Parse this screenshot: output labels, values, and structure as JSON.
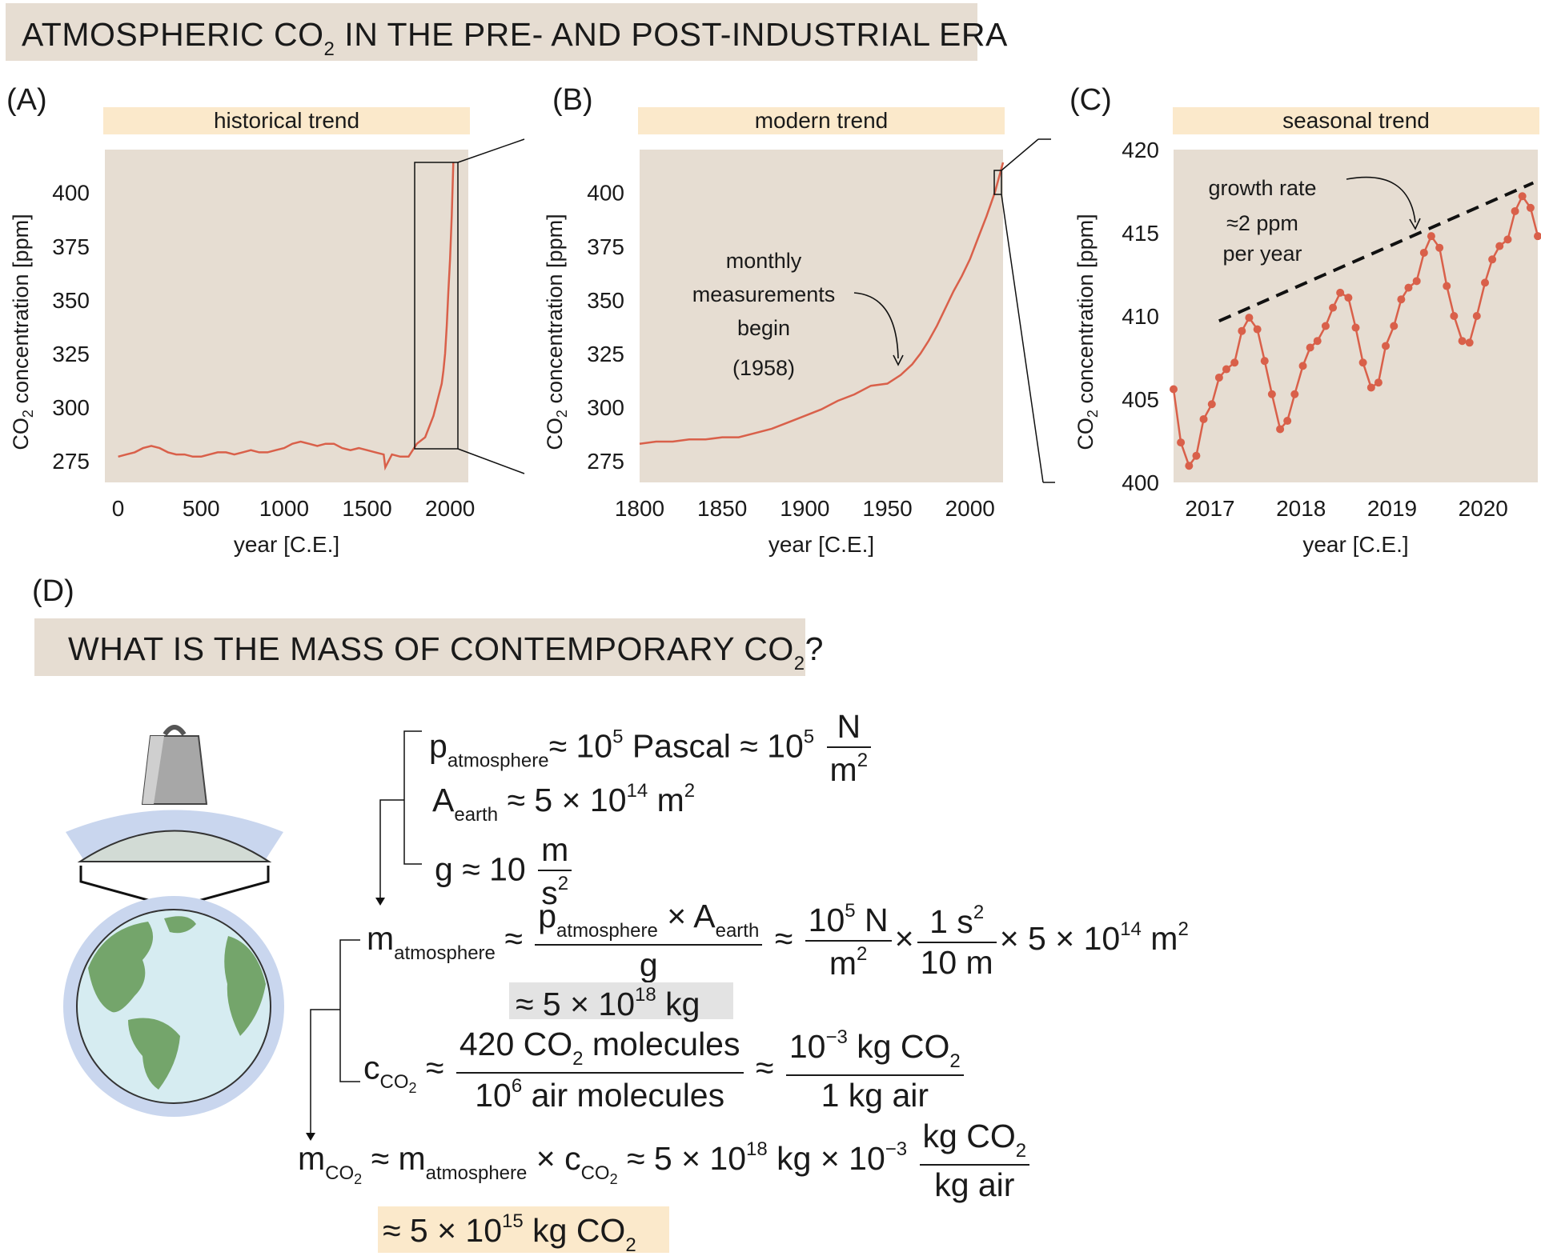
{
  "title": {
    "pre": "ATMOSPHERIC CO",
    "sub": "2",
    "post": " IN THE PRE- AND POST-INDUSTRIAL ERA"
  },
  "section_d": {
    "letter": "(D)",
    "title_pre": "WHAT IS THE MASS OF CONTEMPORARY CO",
    "title_sub": "2",
    "title_post": "?"
  },
  "colors": {
    "plot_bg": "#e6ddd2",
    "line": "#d9604a",
    "banner": "#e6ddd2",
    "subtitle_bg": "#fbe9cb",
    "highlight_gray": "#e3e3e3",
    "highlight_yellow": "#fbe9cb",
    "globe_ocean": "#d6ecf1",
    "globe_land": "#74a56b",
    "atmosphere": "#c9d6ee"
  },
  "icons": {
    "weight": "weight-icon",
    "globe": "earth-globe-icon"
  },
  "chart_data": [
    {
      "panel": "(A)",
      "type": "line",
      "subtitle": "historical trend",
      "xlabel": "year [C.E.]",
      "ylabel_pre": "CO",
      "ylabel_sub": "2",
      "ylabel_post": " concentration [ppm]",
      "xlim": [
        -80,
        2110
      ],
      "ylim": [
        265,
        420
      ],
      "xticks": [
        0,
        500,
        1000,
        1500,
        2000
      ],
      "yticks": [
        275,
        300,
        325,
        350,
        375,
        400
      ],
      "x": [
        0,
        50,
        100,
        150,
        200,
        250,
        300,
        350,
        400,
        450,
        500,
        550,
        600,
        650,
        700,
        750,
        800,
        850,
        900,
        950,
        1000,
        1050,
        1100,
        1150,
        1200,
        1250,
        1300,
        1350,
        1400,
        1450,
        1500,
        1550,
        1600,
        1610,
        1650,
        1700,
        1750,
        1800,
        1850,
        1900,
        1950,
        1960,
        1970,
        1980,
        1990,
        2000,
        2010,
        2020
      ],
      "y": [
        277,
        278,
        279,
        281,
        282,
        281,
        279,
        278,
        278,
        277,
        277,
        278,
        279,
        279,
        278,
        279,
        280,
        279,
        279,
        280,
        281,
        283,
        284,
        283,
        282,
        283,
        283,
        281,
        280,
        281,
        280,
        279,
        278,
        272,
        278,
        277,
        277,
        283,
        286,
        296,
        311,
        317,
        325,
        338,
        354,
        369,
        389,
        414
      ]
    },
    {
      "panel": "(B)",
      "type": "line",
      "subtitle": "modern trend",
      "xlabel": "year [C.E.]",
      "ylabel_pre": "CO",
      "ylabel_sub": "2",
      "ylabel_post": " concentration [ppm]",
      "xlim": [
        1800,
        2020
      ],
      "ylim": [
        265,
        420
      ],
      "xticks": [
        1800,
        1850,
        1900,
        1950,
        2000
      ],
      "yticks": [
        275,
        300,
        325,
        350,
        375,
        400
      ],
      "annotation": [
        "monthly",
        "measurements",
        "begin",
        "(1958)"
      ],
      "x": [
        1800,
        1810,
        1820,
        1830,
        1840,
        1850,
        1860,
        1870,
        1880,
        1890,
        1900,
        1910,
        1920,
        1930,
        1940,
        1950,
        1958,
        1965,
        1970,
        1975,
        1980,
        1985,
        1990,
        1995,
        2000,
        2005,
        2010,
        2015,
        2020
      ],
      "y": [
        283,
        284,
        284,
        285,
        285,
        286,
        286,
        288,
        290,
        293,
        296,
        299,
        303,
        306,
        310,
        311,
        315,
        320,
        325,
        331,
        338,
        346,
        354,
        361,
        369,
        379,
        389,
        400,
        414
      ]
    },
    {
      "panel": "(C)",
      "type": "line",
      "subtitle": "seasonal trend",
      "xlabel": "year [C.E.]",
      "ylabel_pre": "CO",
      "ylabel_sub": "2",
      "ylabel_post": " concentration [ppm]",
      "xlim": [
        2016.6,
        2020.6
      ],
      "ylim": [
        400,
        420
      ],
      "xticks": [
        2017,
        2018,
        2019,
        2020
      ],
      "yticks": [
        400,
        405,
        410,
        415,
        420
      ],
      "annotation": [
        "growth rate",
        "≈2 ppm",
        "per year"
      ],
      "trend_line": {
        "x": [
          2017.1,
          2020.55
        ],
        "y": [
          409.7,
          418.0
        ]
      },
      "x": [
        2016.6,
        2016.68,
        2016.77,
        2016.85,
        2016.93,
        2017.02,
        2017.1,
        2017.18,
        2017.27,
        2017.35,
        2017.43,
        2017.52,
        2017.6,
        2017.68,
        2017.77,
        2017.85,
        2017.93,
        2018.02,
        2018.1,
        2018.18,
        2018.27,
        2018.35,
        2018.43,
        2018.52,
        2018.6,
        2018.68,
        2018.77,
        2018.85,
        2018.93,
        2019.02,
        2019.1,
        2019.18,
        2019.27,
        2019.35,
        2019.43,
        2019.52,
        2019.6,
        2019.68,
        2019.77,
        2019.85,
        2019.93,
        2020.02,
        2020.1,
        2020.18,
        2020.27,
        2020.35,
        2020.43,
        2020.52,
        2020.6
      ],
      "y": [
        405.6,
        402.4,
        401.0,
        401.6,
        403.8,
        404.7,
        406.3,
        406.8,
        407.2,
        409.1,
        409.9,
        409.2,
        407.3,
        405.3,
        403.2,
        403.7,
        405.3,
        407.0,
        408.1,
        408.5,
        409.4,
        410.5,
        411.4,
        411.1,
        409.3,
        407.2,
        405.7,
        406.0,
        408.2,
        409.4,
        411.0,
        411.7,
        412.1,
        413.8,
        414.8,
        414.1,
        411.8,
        410.0,
        408.5,
        408.4,
        410.0,
        412.0,
        413.4,
        414.2,
        414.6,
        416.3,
        417.2,
        416.5,
        414.8
      ]
    }
  ],
  "equations": {
    "p_atm": {
      "sym": "p",
      "sub": "atmosphere",
      "rhs1": "≈ 10",
      "exp1": "5",
      "unit1": " Pascal ≈ 10",
      "exp2": "5",
      "frac_num": "N",
      "frac_den": "m",
      "frac_den_exp": "2"
    },
    "a_earth": {
      "sym": "A",
      "sub": "earth",
      "rhs": "≈ 5 × 10",
      "exp": "14",
      "unit": " m",
      "unit_exp": "2"
    },
    "g": {
      "sym": "g",
      "rhs": "≈ 10",
      "frac_num": "m",
      "frac_den": "s",
      "frac_den_exp": "2"
    },
    "m_atm": {
      "sym": "m",
      "sub": "atmosphere",
      "approx": "≈",
      "f1_num_a": "p",
      "f1_num_a_sub": "atmosphere",
      "f1_num_mid": " × A",
      "f1_num_b_sub": "earth",
      "f1_den": "g",
      "approx2": "≈",
      "f2_num": "10",
      "f2_num_exp": "5",
      "f2_num_unit": " N",
      "f2_den": "m",
      "f2_den_exp": "2",
      "times1": "×",
      "f3_num": "1 s",
      "f3_num_exp": "2",
      "f3_den": "10 m",
      "tail": "× 5 × 10",
      "tail_exp": "14",
      "tail_unit": " m",
      "tail_unit_exp": "2"
    },
    "m_atm_result": {
      "pre": "≈ 5 × 10",
      "exp": "18",
      "post": " kg"
    },
    "c_co2": {
      "sym": "c",
      "sub": "CO",
      "subsub": "2",
      "approx": "≈",
      "f1_num_pre": "420 CO",
      "f1_num_sub": "2",
      "f1_num_post": " molecules",
      "f1_den_pre": "10",
      "f1_den_exp": "6",
      "f1_den_post": " air molecules",
      "approx2": "≈",
      "f2_num_pre": "10",
      "f2_num_exp": "−3",
      "f2_num_post": " kg CO",
      "f2_num_sub": "2",
      "f2_den": "1 kg air"
    },
    "m_co2": {
      "sym": "m",
      "sub": "CO",
      "subsub": "2",
      "mid": " ≈ m",
      "mid_sub": "atmosphere",
      "times": " × c",
      "times_sub": "CO",
      "times_subsub": "2",
      "rhs": " ≈ 5 × 10",
      "rhs_exp": "18",
      "rhs_mid": " kg × 10",
      "rhs_exp2": "−3",
      "f_num_pre": "kg CO",
      "f_num_sub": "2",
      "f_den": "kg air"
    },
    "m_co2_result": {
      "pre": "≈ 5 × 10",
      "exp": "15",
      "post": " kg CO",
      "sub": "2"
    }
  }
}
